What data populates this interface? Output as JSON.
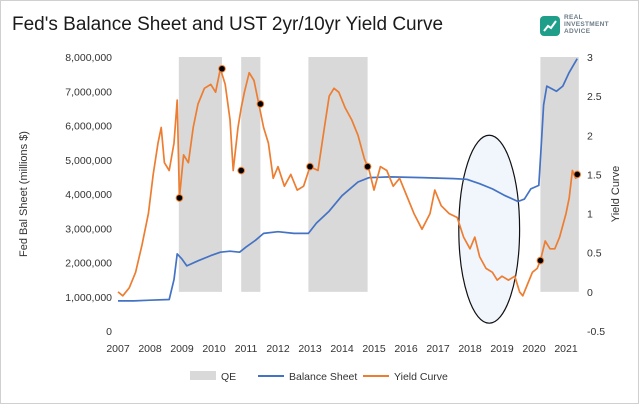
{
  "title": "Fed's Balance Sheet and UST 2yr/10yr Yield Curve",
  "logo": {
    "line1": "REAL",
    "line2": "INVESTMENT",
    "line3": "ADVICE",
    "icon": "bull-chart-icon",
    "color": "#1f9e8a"
  },
  "chart_data": {
    "type": "line",
    "title": "Fed's Balance Sheet and UST 2yr/10yr Yield Curve",
    "xlabel": "",
    "ylabel_left": "Fed Bal Sheet (millions $)",
    "ylabel_right": "Yield Curve",
    "x_range": [
      2007,
      2021.5
    ],
    "x_ticks": [
      "2007",
      "2008",
      "2009",
      "2010",
      "2011",
      "2012",
      "2013",
      "2014",
      "2015",
      "2016",
      "2017",
      "2018",
      "2019",
      "2020",
      "2021"
    ],
    "ylim_left": [
      0,
      8000000
    ],
    "y_ticks_left": [
      "0",
      "1,000,000",
      "2,000,000",
      "3,000,000",
      "4,000,000",
      "5,000,000",
      "6,000,000",
      "7,000,000",
      "8,000,000"
    ],
    "ylim_right": [
      -0.5,
      3
    ],
    "y_ticks_right": [
      "-0.5",
      "0",
      "0.5",
      "1",
      "1.5",
      "2",
      "2.5",
      "3"
    ],
    "grid": false,
    "legend_position": "bottom",
    "colors": {
      "qe": "#d9d9d9",
      "balance_sheet": "#4472c4",
      "yield_curve": "#ed7d31",
      "ellipse_fill": "#eef3fb",
      "marker": "#000000"
    },
    "legend": [
      "QE",
      "Balance Sheet",
      "Yield Curve"
    ],
    "qe_periods": [
      [
        2008.9,
        2010.25
      ],
      [
        2010.85,
        2011.45
      ],
      [
        2012.95,
        2014.8
      ],
      [
        2020.2,
        2021.4
      ]
    ],
    "series": [
      {
        "name": "Balance Sheet",
        "axis": "left",
        "points": [
          [
            2007.0,
            880000
          ],
          [
            2007.5,
            880000
          ],
          [
            2008.0,
            900000
          ],
          [
            2008.6,
            920000
          ],
          [
            2008.75,
            1500000
          ],
          [
            2008.85,
            2250000
          ],
          [
            2009.0,
            2100000
          ],
          [
            2009.15,
            1900000
          ],
          [
            2009.5,
            2050000
          ],
          [
            2009.9,
            2200000
          ],
          [
            2010.2,
            2300000
          ],
          [
            2010.5,
            2330000
          ],
          [
            2010.8,
            2300000
          ],
          [
            2011.0,
            2450000
          ],
          [
            2011.3,
            2650000
          ],
          [
            2011.55,
            2850000
          ],
          [
            2012.0,
            2900000
          ],
          [
            2012.5,
            2850000
          ],
          [
            2012.95,
            2850000
          ],
          [
            2013.2,
            3150000
          ],
          [
            2013.6,
            3500000
          ],
          [
            2014.0,
            3950000
          ],
          [
            2014.5,
            4350000
          ],
          [
            2014.85,
            4480000
          ],
          [
            2015.5,
            4500000
          ],
          [
            2016.5,
            4480000
          ],
          [
            2017.5,
            4450000
          ],
          [
            2017.9,
            4430000
          ],
          [
            2018.3,
            4300000
          ],
          [
            2018.7,
            4150000
          ],
          [
            2019.1,
            3950000
          ],
          [
            2019.5,
            3780000
          ],
          [
            2019.7,
            3850000
          ],
          [
            2019.9,
            4150000
          ],
          [
            2020.15,
            4250000
          ],
          [
            2020.22,
            5300000
          ],
          [
            2020.3,
            6600000
          ],
          [
            2020.4,
            7150000
          ],
          [
            2020.7,
            7000000
          ],
          [
            2020.9,
            7150000
          ],
          [
            2021.1,
            7550000
          ],
          [
            2021.35,
            7950000
          ]
        ]
      },
      {
        "name": "Yield Curve",
        "axis": "right",
        "points": [
          [
            2007.0,
            0.0
          ],
          [
            2007.15,
            -0.05
          ],
          [
            2007.35,
            0.05
          ],
          [
            2007.55,
            0.25
          ],
          [
            2007.75,
            0.6
          ],
          [
            2007.95,
            1.0
          ],
          [
            2008.1,
            1.5
          ],
          [
            2008.25,
            1.9
          ],
          [
            2008.35,
            2.1
          ],
          [
            2008.45,
            1.65
          ],
          [
            2008.6,
            1.55
          ],
          [
            2008.75,
            1.9
          ],
          [
            2008.85,
            2.45
          ],
          [
            2008.92,
            1.2
          ],
          [
            2009.05,
            1.75
          ],
          [
            2009.2,
            1.65
          ],
          [
            2009.35,
            2.1
          ],
          [
            2009.5,
            2.4
          ],
          [
            2009.7,
            2.6
          ],
          [
            2009.9,
            2.65
          ],
          [
            2010.05,
            2.55
          ],
          [
            2010.2,
            2.85
          ],
          [
            2010.35,
            2.65
          ],
          [
            2010.5,
            2.2
          ],
          [
            2010.6,
            1.55
          ],
          [
            2010.75,
            2.1
          ],
          [
            2010.85,
            2.35
          ],
          [
            2010.95,
            2.55
          ],
          [
            2011.1,
            2.8
          ],
          [
            2011.25,
            2.7
          ],
          [
            2011.4,
            2.4
          ],
          [
            2011.55,
            2.1
          ],
          [
            2011.7,
            1.9
          ],
          [
            2011.85,
            1.45
          ],
          [
            2012.0,
            1.6
          ],
          [
            2012.2,
            1.35
          ],
          [
            2012.4,
            1.5
          ],
          [
            2012.6,
            1.3
          ],
          [
            2012.8,
            1.35
          ],
          [
            2013.0,
            1.6
          ],
          [
            2013.25,
            1.55
          ],
          [
            2013.45,
            2.1
          ],
          [
            2013.6,
            2.5
          ],
          [
            2013.75,
            2.6
          ],
          [
            2013.9,
            2.55
          ],
          [
            2014.1,
            2.35
          ],
          [
            2014.3,
            2.2
          ],
          [
            2014.5,
            2.0
          ],
          [
            2014.7,
            1.7
          ],
          [
            2014.85,
            1.55
          ],
          [
            2015.0,
            1.3
          ],
          [
            2015.2,
            1.6
          ],
          [
            2015.4,
            1.55
          ],
          [
            2015.6,
            1.35
          ],
          [
            2015.8,
            1.45
          ],
          [
            2016.0,
            1.25
          ],
          [
            2016.25,
            1.0
          ],
          [
            2016.5,
            0.8
          ],
          [
            2016.75,
            1.0
          ],
          [
            2016.9,
            1.3
          ],
          [
            2017.1,
            1.1
          ],
          [
            2017.35,
            1.0
          ],
          [
            2017.6,
            0.95
          ],
          [
            2017.8,
            0.7
          ],
          [
            2018.0,
            0.55
          ],
          [
            2018.15,
            0.7
          ],
          [
            2018.3,
            0.45
          ],
          [
            2018.5,
            0.3
          ],
          [
            2018.7,
            0.25
          ],
          [
            2018.85,
            0.15
          ],
          [
            2019.0,
            0.2
          ],
          [
            2019.2,
            0.15
          ],
          [
            2019.4,
            0.2
          ],
          [
            2019.55,
            0.0
          ],
          [
            2019.65,
            -0.05
          ],
          [
            2019.8,
            0.1
          ],
          [
            2019.95,
            0.25
          ],
          [
            2020.1,
            0.3
          ],
          [
            2020.2,
            0.4
          ],
          [
            2020.35,
            0.65
          ],
          [
            2020.5,
            0.55
          ],
          [
            2020.65,
            0.55
          ],
          [
            2020.8,
            0.7
          ],
          [
            2021.0,
            1.0
          ],
          [
            2021.1,
            1.2
          ],
          [
            2021.2,
            1.55
          ],
          [
            2021.3,
            1.45
          ],
          [
            2021.4,
            1.5
          ]
        ]
      }
    ],
    "markers": [
      [
        2008.92,
        1.2
      ],
      [
        2010.25,
        2.85
      ],
      [
        2010.85,
        1.55
      ],
      [
        2011.45,
        2.4
      ],
      [
        2013.0,
        1.6
      ],
      [
        2014.8,
        1.6
      ],
      [
        2020.2,
        0.4
      ],
      [
        2021.35,
        1.5
      ]
    ],
    "annotation_ellipse": {
      "x_center": 2018.6,
      "y_center_right": 0.8,
      "x_halfwidth": 0.95,
      "y_halfwidth_right": 1.2
    }
  }
}
